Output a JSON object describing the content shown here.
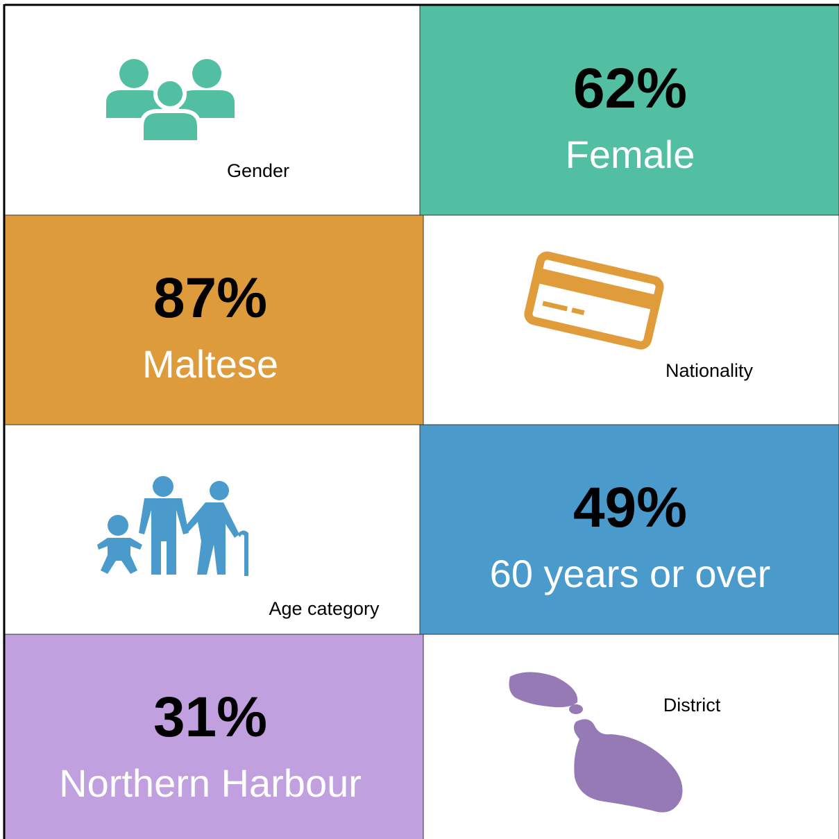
{
  "rows": [
    {
      "label": "Gender",
      "stat": "62%",
      "description": "Female",
      "color": "#52bfa3"
    },
    {
      "label": "Nationality",
      "stat": "87%",
      "description": "Maltese",
      "color": "#de9b3c"
    },
    {
      "label": "Age category",
      "stat": "49%",
      "description": "60 years or over",
      "color": "#4a9bcc"
    },
    {
      "label": "District",
      "stat": "31%",
      "description": "Northern Harbour",
      "color": "#c0a0de"
    }
  ]
}
